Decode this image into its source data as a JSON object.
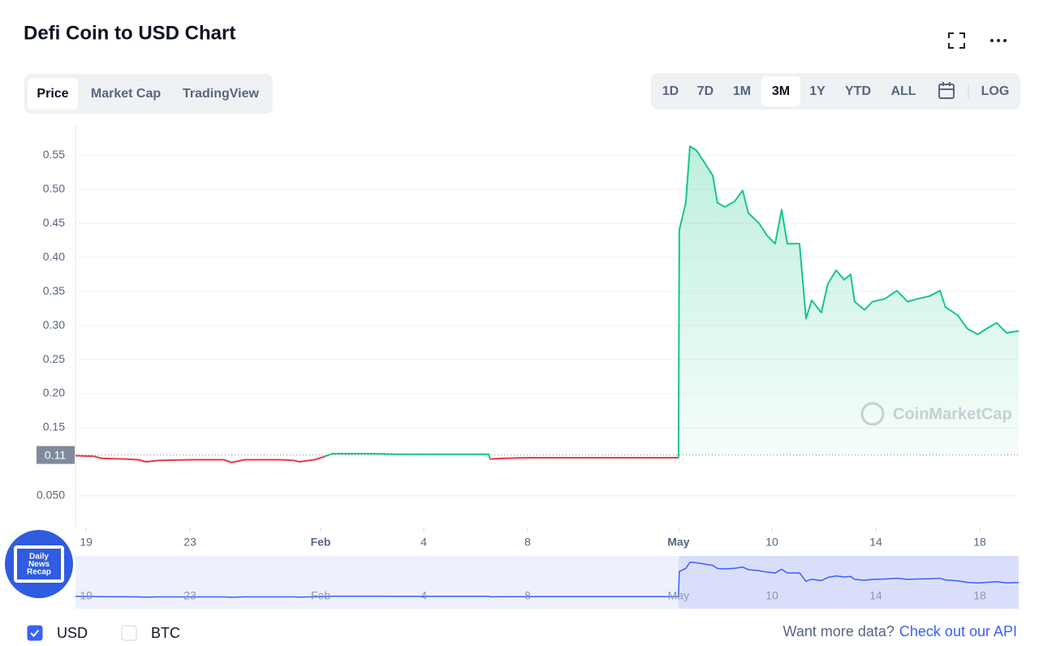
{
  "header": {
    "title": "Defi Coin to USD Chart"
  },
  "tabs": [
    {
      "label": "Price",
      "selected": true
    },
    {
      "label": "Market Cap",
      "selected": false
    },
    {
      "label": "TradingView",
      "selected": false
    }
  ],
  "ranges": [
    {
      "label": "1D",
      "selected": false
    },
    {
      "label": "7D",
      "selected": false
    },
    {
      "label": "1M",
      "selected": false
    },
    {
      "label": "3M",
      "selected": true
    },
    {
      "label": "1Y",
      "selected": false
    },
    {
      "label": "YTD",
      "selected": false
    },
    {
      "label": "ALL",
      "selected": false
    }
  ],
  "log_button": "LOG",
  "chart_data": {
    "type": "line",
    "x": [
      -0.41,
      0.3,
      0.6,
      1.5,
      2,
      2.3,
      2.8,
      4,
      5.3,
      5.6,
      6.1,
      7.5,
      8,
      8.2,
      8.8,
      9.2,
      9.5,
      11,
      12,
      15.5,
      15.55,
      16,
      17,
      22.81,
      22.84,
      23.09,
      23.25,
      23.5,
      23.81,
      24.13,
      24.31,
      24.59,
      24.97,
      25.28,
      25.5,
      25.91,
      26.22,
      26.53,
      26.78,
      27,
      27.47,
      27.72,
      27.94,
      28.31,
      28.56,
      28.88,
      29.19,
      29.44,
      29.59,
      29.97,
      30.28,
      30.75,
      31.22,
      31.63,
      32,
      32.47,
      32.88,
      33.09,
      33.56,
      33.94,
      34.34,
      34.66,
      35.06,
      35.44,
      35.91
    ],
    "values": [
      0.109,
      0.108,
      0.105,
      0.104,
      0.103,
      0.1,
      0.102,
      0.103,
      0.103,
      0.099,
      0.103,
      0.103,
      0.102,
      0.1,
      0.103,
      0.108,
      0.112,
      0.112,
      0.111,
      0.111,
      0.104,
      0.105,
      0.106,
      0.106,
      0.44,
      0.48,
      0.563,
      0.557,
      0.539,
      0.52,
      0.48,
      0.474,
      0.482,
      0.498,
      0.465,
      0.45,
      0.432,
      0.42,
      0.47,
      0.42,
      0.42,
      0.31,
      0.337,
      0.319,
      0.361,
      0.381,
      0.367,
      0.375,
      0.335,
      0.323,
      0.335,
      0.339,
      0.351,
      0.335,
      0.339,
      0.343,
      0.351,
      0.327,
      0.315,
      0.295,
      0.287,
      0.295,
      0.304,
      0.289,
      0.292
    ],
    "color": "#16c784",
    "color_below": "#ea3943",
    "current_price": 0.11,
    "xlim": [
      -0.41,
      35.91
    ],
    "ylim": [
      0,
      0.593
    ],
    "xticks": [
      {
        "value": 0,
        "label": "19"
      },
      {
        "value": 4,
        "label": "23"
      },
      {
        "value": 9.03,
        "label": "Feb"
      },
      {
        "value": 13,
        "label": "4"
      },
      {
        "value": 17,
        "label": "8"
      },
      {
        "value": 22.81,
        "label": "May"
      },
      {
        "value": 26.41,
        "label": "10"
      },
      {
        "value": 30.41,
        "label": "14"
      },
      {
        "value": 34.41,
        "label": "18"
      }
    ],
    "yticks": [
      {
        "value": 0.05,
        "label": "0.050"
      },
      0.15,
      {
        "value": 0.2,
        "label": "0.20"
      },
      0.25,
      {
        "value": 0.3,
        "label": "0.30"
      },
      0.35,
      {
        "value": 0.4,
        "label": "0.40"
      },
      0.45,
      {
        "value": 0.5,
        "label": "0.50"
      },
      0.55
    ],
    "grid": true,
    "watermark": "CoinMarketCap",
    "navigator_color": "#3861fb"
  },
  "badge": {
    "lines": [
      "Daily",
      "News",
      "Recap"
    ]
  },
  "currencies": [
    {
      "label": "USD",
      "checked": true
    },
    {
      "label": "BTC",
      "checked": false
    }
  ],
  "footer": {
    "text": "Want more data?",
    "link": "Check out our API"
  }
}
